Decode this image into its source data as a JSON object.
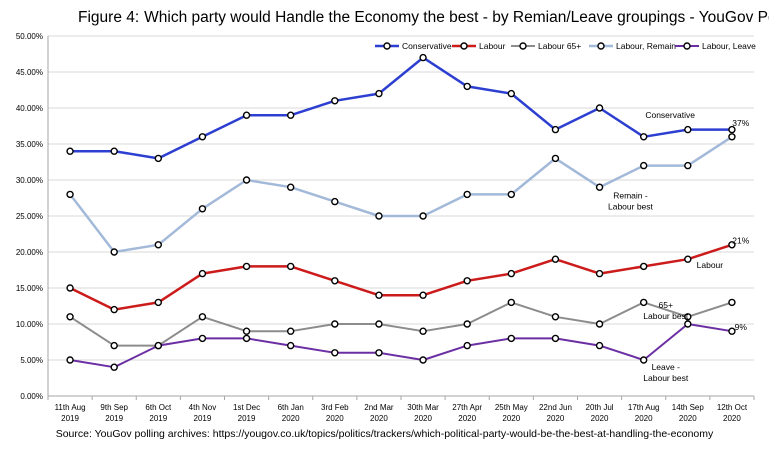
{
  "title_number": "Figure 4:",
  "title_text": "Which party would Handle the Economy the best - by Remian/Leave groupings - YouGov Polls",
  "source": "Source: YouGov polling archives:  https://yougov.co.uk/topics/politics/trackers/which-political-party-would-be-the-best-at-handling-the-economy",
  "chart_data": {
    "type": "line",
    "categories": [
      [
        "11th Aug",
        "2019"
      ],
      [
        "9th Sep",
        "2019"
      ],
      [
        "6th Oct",
        "2019"
      ],
      [
        "4th Nov",
        "2019"
      ],
      [
        "1st Dec",
        "2019"
      ],
      [
        "6th Jan",
        "2020"
      ],
      [
        "3rd Feb",
        "2020"
      ],
      [
        "2nd Mar",
        "2020"
      ],
      [
        "30th Mar",
        "2020"
      ],
      [
        "27th Apr",
        "2020"
      ],
      [
        "25th May",
        "2020"
      ],
      [
        "22nd Jun",
        "2020"
      ],
      [
        "20th Jul",
        "2020"
      ],
      [
        "17th Aug",
        "2020"
      ],
      [
        "14th Sep",
        "2020"
      ],
      [
        "12th Oct",
        "2020"
      ]
    ],
    "ylim": [
      0,
      50
    ],
    "y_ticks": [
      "0.00%",
      "5.00%",
      "10.00%",
      "15.00%",
      "20.00%",
      "25.00%",
      "30.00%",
      "35.00%",
      "40.00%",
      "45.00%",
      "50.00%"
    ],
    "grid": true,
    "legend_position": "top-right",
    "series": [
      {
        "name": "Conservative",
        "color": "#2d3fd1",
        "width": 2.5,
        "values": [
          34,
          34,
          33,
          36,
          39,
          39,
          41,
          42,
          47,
          43,
          42,
          37,
          40,
          36,
          37,
          37
        ]
      },
      {
        "name": "Labour",
        "color": "#cc1b1b",
        "width": 2.5,
        "values": [
          15,
          12,
          13,
          17,
          18,
          18,
          16,
          14,
          14,
          16,
          17,
          19,
          17,
          18,
          19,
          21
        ]
      },
      {
        "name": "Labour 65+",
        "color": "#8c8c8c",
        "width": 2,
        "values": [
          11,
          7,
          7,
          11,
          9,
          9,
          10,
          10,
          9,
          10,
          13,
          11,
          10,
          13,
          11,
          13
        ]
      },
      {
        "name": "Labour, Remain",
        "color": "#a3b9d9",
        "width": 2.5,
        "values": [
          28,
          20,
          21,
          26,
          30,
          29,
          27,
          25,
          25,
          28,
          28,
          33,
          29,
          32,
          32,
          36
        ]
      },
      {
        "name": "Labour, Leave",
        "color": "#6b2fa3",
        "width": 2,
        "values": [
          5,
          4,
          7,
          8,
          8,
          7,
          6,
          6,
          5,
          7,
          8,
          8,
          7,
          5,
          10,
          9
        ]
      }
    ],
    "annotations": [
      {
        "lines": [
          "Conservative"
        ],
        "at": [
          13.6,
          38.6
        ]
      },
      {
        "lines": [
          "37%"
        ],
        "at": [
          15.2,
          37.5
        ]
      },
      {
        "lines": [
          "Remain -",
          "Labour best"
        ],
        "at": [
          12.7,
          27.4
        ]
      },
      {
        "lines": [
          "21%"
        ],
        "at": [
          15.2,
          21.2
        ]
      },
      {
        "lines": [
          "Labour"
        ],
        "at": [
          14.5,
          17.8
        ]
      },
      {
        "lines": [
          "65+",
          "Labour best"
        ],
        "at": [
          13.5,
          12.2
        ]
      },
      {
        "lines": [
          "9%"
        ],
        "at": [
          15.2,
          9.2
        ]
      },
      {
        "lines": [
          "Leave -",
          "Labour best"
        ],
        "at": [
          13.5,
          3.6
        ]
      }
    ]
  }
}
